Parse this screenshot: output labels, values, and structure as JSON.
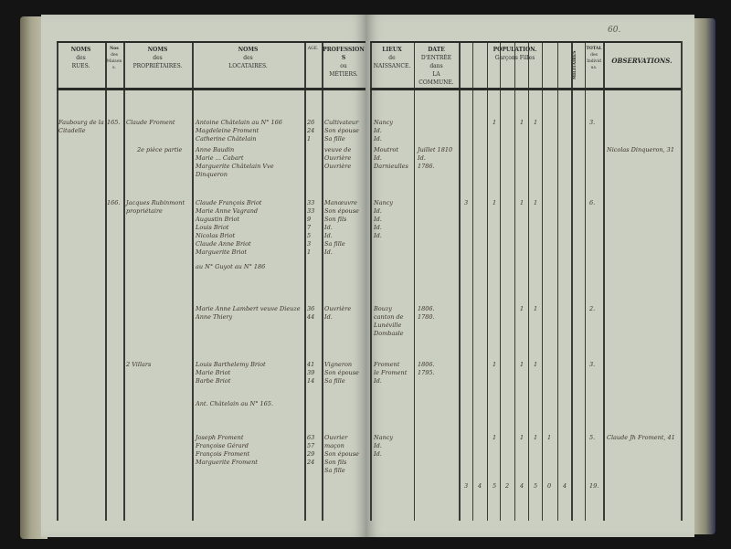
{
  "page_number": "60.",
  "headers_left": [
    {
      "t": "NOMS",
      "s": "des",
      "b": "RUES."
    },
    {
      "t": "Nos",
      "s": "des",
      "b": "Maisons."
    },
    {
      "t": "NOMS",
      "s": "des",
      "b": "PROPRIÉTAIRES."
    },
    {
      "t": "NOMS",
      "s": "des",
      "b": "LOCATAIRES."
    },
    {
      "t": "",
      "s": "AGE.",
      "b": ""
    },
    {
      "t": "PROFESSIONS",
      "s": "ou",
      "b": "MÉTIERS."
    }
  ],
  "headers_right": [
    {
      "t": "LIEUX",
      "s": "de",
      "b": "NAISSANCE."
    },
    {
      "t": "DATE",
      "s": "D'ENTRÉE dans",
      "b": "LA COMMUNE."
    },
    {
      "t": "POPULATION.",
      "s": "Garçons   Filles",
      "b": ""
    },
    {
      "t": "MILITAIRES",
      "s": "",
      "b": ""
    },
    {
      "t": "TOTAL",
      "s": "des",
      "b": "Individus."
    },
    {
      "t": "OBSERVATIONS.",
      "s": "",
      "b": ""
    }
  ],
  "left_entries": [
    {
      "rue": "Faubourg de la Citadelle",
      "no": "165.",
      "prop": "Claude Froment",
      "loc": [
        "Antoine Châtelain   au N° 166",
        "Magdeleine Froment",
        "Catherine Châtelain"
      ],
      "age": [
        "26",
        "24",
        "1"
      ],
      "prof": [
        "Cultivateur",
        "Son épouse",
        "Sa fille"
      ]
    },
    {
      "rue": "",
      "no": "",
      "prop": "2e pièce partie",
      "loc": [
        "Anne Baudin",
        "Marie ... Cabart",
        "Marguerite Châtelain Vve Dinqueron"
      ],
      "age": [
        "",
        "",
        ""
      ],
      "prof": [
        "veuve de",
        "Ouvrière",
        "Ouvrière"
      ]
    },
    {
      "rue": "",
      "no": "166.",
      "prop": "Jacques Rubinmont propriétaire",
      "loc": [
        "Claude François Briot",
        "Marie Anne Vagrand",
        "Augustin Briot",
        "Louis Briot",
        "Nicolas Briot",
        "Claude Anne Briot",
        "Marguerite Briot"
      ],
      "age": [
        "33",
        "33",
        "9",
        "7",
        "5",
        "3",
        "1"
      ],
      "prof": [
        "Manœuvre",
        "Son épouse",
        "Son fils",
        "Id.",
        "Id.",
        "Sa fille",
        "Id."
      ]
    },
    {
      "rue": "",
      "no": "",
      "prop": "",
      "loc": [
        "au N° Guyot au N° 186"
      ],
      "age": [],
      "prof": []
    },
    {
      "rue": "",
      "no": "",
      "prop": "",
      "loc": [
        "Marie Anne Lambert veuve Dieuze",
        "Anne Thiery"
      ],
      "age": [
        "36",
        "44"
      ],
      "prof": [
        "Ouvrière",
        "Id."
      ]
    },
    {
      "rue": "",
      "no": "",
      "prop": "2 Villars",
      "loc": [
        "Louis Barthelemy Briot",
        "Marie Briot",
        "Barbe Briot"
      ],
      "age": [
        "41",
        "39",
        "14"
      ],
      "prof": [
        "Vigneron",
        "Son épouse",
        "Sa fille"
      ]
    },
    {
      "rue": "",
      "no": "",
      "prop": "",
      "loc": [
        "Ant. Châtelain au N° 165."
      ],
      "age": [],
      "prof": []
    },
    {
      "rue": "",
      "no": "",
      "prop": "",
      "loc": [
        "Joseph Froment",
        "Françoise Gérard",
        "François Froment",
        "Marguerite Froment"
      ],
      "age": [
        "63",
        "57",
        "29",
        "24"
      ],
      "prof": [
        "Ouvrier maçon",
        "Son épouse",
        "Son fils",
        "Sa fille"
      ]
    }
  ],
  "right_entries": [
    {
      "lieu": [
        "Nancy",
        "Id.",
        "Id."
      ],
      "date": [],
      "pop": [
        "",
        "",
        "1",
        "",
        "1",
        "1",
        "",
        ""
      ],
      "total": "3.",
      "obs": ""
    },
    {
      "lieu": [
        "Moutrot",
        "Id.",
        "Darnieulles"
      ],
      "date": [
        "Juillet 1810",
        "Id.",
        "1786."
      ],
      "pop": [],
      "total": "",
      "obs": "Nicolas Dinqueron, 31"
    },
    {
      "lieu": [
        "Nancy",
        "Id.",
        "Id.",
        "Id.",
        "Id."
      ],
      "date": [],
      "pop": [
        "3",
        "",
        "1",
        "",
        "1",
        "1",
        "",
        ""
      ],
      "total": "6.",
      "obs": ""
    },
    {
      "lieu": [],
      "date": [],
      "pop": [],
      "total": "",
      "obs": ""
    },
    {
      "lieu": [
        "Bouzy canton de Lunéville",
        "Dombasle"
      ],
      "date": [
        "1806.",
        "1780."
      ],
      "pop": [
        "",
        "",
        "",
        "",
        "1",
        "1",
        "",
        ""
      ],
      "total": "2.",
      "obs": ""
    },
    {
      "lieu": [
        "Froment",
        "le Froment",
        "Id."
      ],
      "date": [
        "1806.",
        "1795."
      ],
      "pop": [
        "",
        "",
        "1",
        "",
        "1",
        "1",
        "",
        ""
      ],
      "total": "3.",
      "obs": ""
    },
    {
      "lieu": [],
      "date": [],
      "pop": [],
      "total": "",
      "obs": ""
    },
    {
      "lieu": [
        "Nancy",
        "Id.",
        "Id."
      ],
      "date": [],
      "pop": [
        "",
        "",
        "1",
        "",
        "1",
        "1",
        "1",
        ""
      ],
      "total": "5.",
      "obs": "Claude Jh Froment, 41"
    }
  ],
  "totals": {
    "pop": [
      "3",
      "4",
      "5",
      "2",
      "4",
      "5",
      "0",
      "4"
    ],
    "total": "19."
  }
}
